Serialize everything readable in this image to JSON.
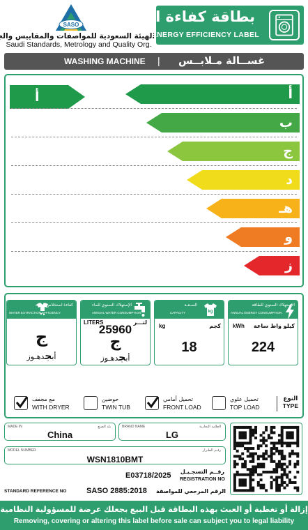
{
  "header": {
    "logo_text": "SASO",
    "org_name_ar": "الهيئة السعودية للمواصفات والمقاييس والجودة",
    "org_name_en": "Saudi Standards, Metrology and Quality Org.",
    "label_title_ar": "بطاقة كفاءة الطاقة",
    "label_title_en": "ENERGY EFFICIENCY LABEL",
    "icon": "washing-machine-icon"
  },
  "product_bar": {
    "title_en": "WASHING MACHINE",
    "separator": "|",
    "title_ar": "غســالة مـلابــس"
  },
  "scale": {
    "classes": [
      {
        "letter": "أ",
        "color": "#1f9a4b"
      },
      {
        "letter": "ب",
        "color": "#44a846"
      },
      {
        "letter": "ج",
        "color": "#8cc63f"
      },
      {
        "letter": "د",
        "color": "#f1dc1c"
      },
      {
        "letter": "هـ",
        "color": "#f7b21a"
      },
      {
        "letter": "و",
        "color": "#ef7b22"
      },
      {
        "letter": "ز",
        "color": "#e3272b"
      }
    ],
    "rating": "أ",
    "rating_color": "#1f9a4b"
  },
  "cards": {
    "energy": {
      "title_ar": "الإستهلاك السنوي للطاقة",
      "title_en": "ANNUAL ENERGY CONSUMPTION",
      "unit_en": "kWh",
      "unit_ar": "كيلو واط ساعة",
      "value": "224",
      "icon": "lightning-icon"
    },
    "capacity": {
      "title_ar": "السـعـة",
      "title_en": "CAPACITY",
      "unit_en": "kg",
      "unit_ar": "كجم",
      "value": "18",
      "icon": "weight-shirt-icon",
      "icon_text": "kg"
    },
    "water": {
      "title_ar": "الإستهلاك السنوي للماء",
      "title_en": "ANNUAL WATER CONSUMPTION",
      "unit_en": "LITERS",
      "unit_ar": "لتـــر",
      "value": "25960",
      "class": "ج",
      "scale_prefix": "أب",
      "scale_highlight": "ج",
      "scale_suffix": "دهـوز",
      "icon": "water-tap-icon"
    },
    "extraction": {
      "title_ar": "كفاءة استخلاص المياه",
      "title_en": "WATER EXTRACTION EFFICIENCY",
      "class": "ج",
      "scale_prefix": "أب",
      "scale_highlight": "ج",
      "scale_suffix": "دهـوز",
      "icon": "wringing-shirt-icon"
    }
  },
  "type_row": {
    "type_ar": "النوع",
    "type_en": "TYPE",
    "options": [
      {
        "ar": "تحميل علوي",
        "en": "TOP LOAD",
        "checked": false
      },
      {
        "ar": "تحميل أمامي",
        "en": "FRONT LOAD",
        "checked": true
      },
      {
        "ar": "حوضين",
        "en": "TWIN TUB",
        "checked": false
      },
      {
        "ar": "مع مجفف",
        "en": "WITH DRYER",
        "checked": true
      }
    ]
  },
  "details": {
    "made_in_label_en": "MADE IN",
    "made_in_label_ar": "بلد الصنع",
    "made_in": "China",
    "brand_label_en": "BRAND NAME",
    "brand_label_ar": "العلامة التجارية",
    "brand": "LG",
    "model_label_en": "MODEL NUMBER",
    "model_label_ar": "رقـم الطـراز",
    "model": "WSN1810BMT",
    "registration_label_ar": "رقــم التسجـيـل",
    "registration_label_en": "REGISTRATION NO",
    "registration": "E03718/2025",
    "standard_label_en": "STANDARD REFERENCE NO",
    "standard": "SASO 2885:2018",
    "standard_label_ar": "الرقم المرجعي للمواصفة"
  },
  "footer": {
    "warning_ar": "إزالة أو تغطية أو العبث بهذه البطاقة قبل البيع بجعلك عرضة للمسؤولية النظامية",
    "warning_en": "Removing, covering or altering this label before sale can subject you to legal liability"
  }
}
